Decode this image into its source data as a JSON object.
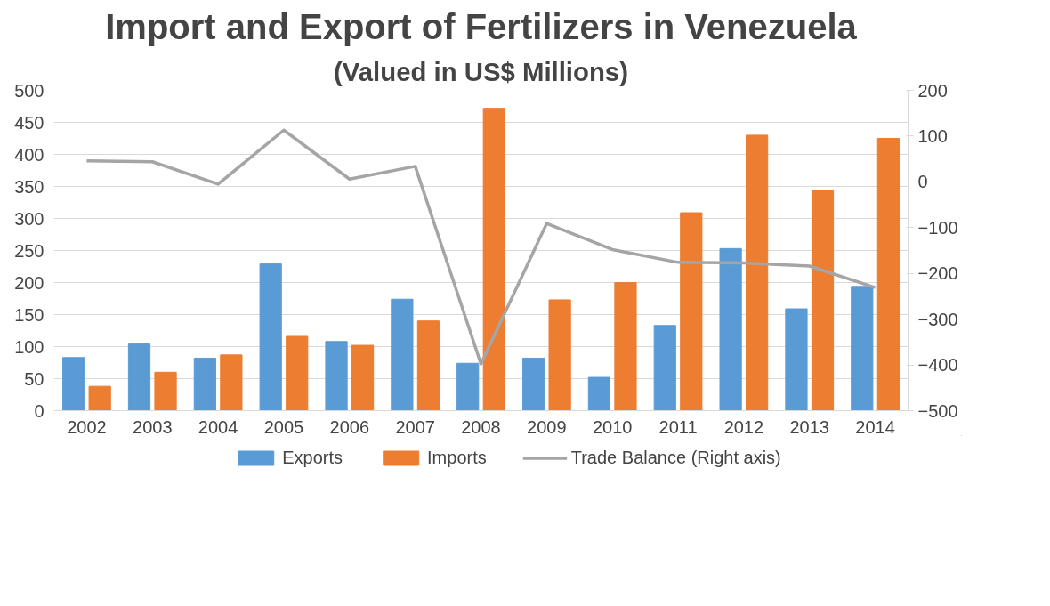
{
  "chart_data": {
    "type": "bar",
    "title": "Import and Export of Fertilizers in Venezuela",
    "subtitle": "(Valued in US$ Millions)",
    "categories": [
      "2002",
      "2003",
      "2004",
      "2005",
      "2006",
      "2007",
      "2008",
      "2009",
      "2010",
      "2011",
      "2012",
      "2013",
      "2014"
    ],
    "series": [
      {
        "name": "Exports",
        "color": "#5b9bd5",
        "values": [
          83,
          104,
          82,
          229,
          108,
          174,
          74,
          82,
          52,
          133,
          253,
          159,
          194
        ]
      },
      {
        "name": "Imports",
        "color": "#ed7d31",
        "values": [
          38,
          60,
          87,
          116,
          102,
          140,
          472,
          173,
          200,
          309,
          430,
          343,
          425
        ]
      },
      {
        "name": "Trade Balance (Right axis)",
        "type": "line",
        "axis": "y2",
        "color": "#a5a5a5",
        "values": [
          46,
          44,
          -5,
          113,
          6,
          34,
          -398,
          -91,
          -148,
          -176,
          -177,
          -184,
          -231
        ]
      }
    ],
    "ylim": [
      0,
      500
    ],
    "yticks": [
      0,
      50,
      100,
      150,
      200,
      250,
      300,
      350,
      400,
      450,
      500
    ],
    "y2lim": [
      -500,
      200
    ],
    "y2ticks": [
      -500,
      -400,
      -300,
      -200,
      -100,
      0,
      100,
      200
    ],
    "grid": "y",
    "legend": "bottom",
    "marker": "none",
    "line_style": "solid"
  }
}
